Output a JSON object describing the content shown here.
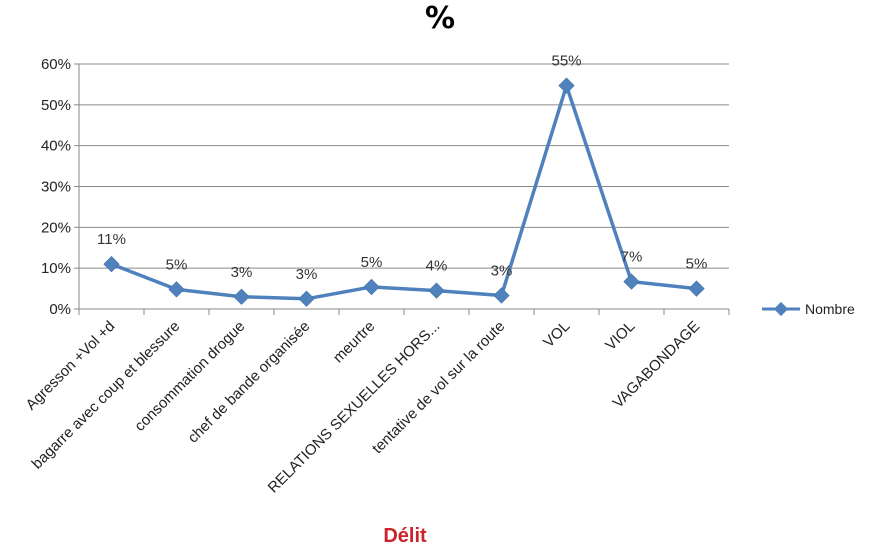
{
  "chart_data": {
    "type": "line",
    "title": "%",
    "xlabel": "Délit",
    "ylabel": "",
    "categories": [
      "Agresson +Vol +d",
      "bagarre avec coup et blessure",
      "consommation drogue",
      "chef de bande organisée",
      "meurtre",
      "RELATIONS SEXUELLES HORS...",
      "tentative de vol sur la route",
      "VOL",
      "VIOL",
      "VAGABONDAGE"
    ],
    "series": [
      {
        "name": "Nombre",
        "values": [
          0.11,
          0.048,
          0.03,
          0.025,
          0.054,
          0.045,
          0.033,
          0.547,
          0.067,
          0.05
        ],
        "labels": [
          "11%",
          "5%",
          "3%",
          "3%",
          "5%",
          "4%",
          "3%",
          "55%",
          "7%",
          "5%"
        ],
        "color": "#4f81bd"
      }
    ],
    "ylim": [
      0,
      0.6
    ],
    "yticks": [
      "0%",
      "10%",
      "20%",
      "30%",
      "40%",
      "50%",
      "60%"
    ],
    "grid": true,
    "legend_position": "right",
    "title_color": "#000000",
    "xlabel_color": "#cc2229"
  }
}
